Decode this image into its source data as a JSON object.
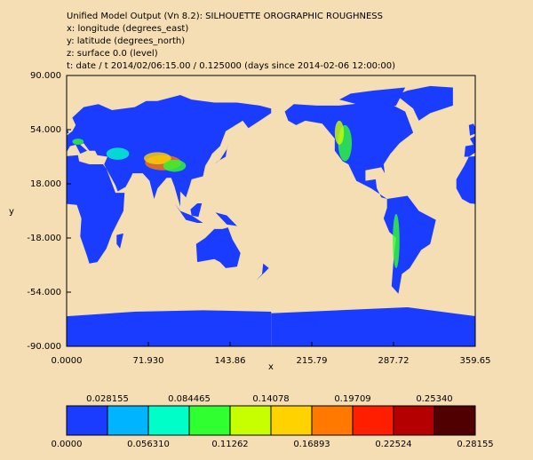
{
  "chart_data": {
    "type": "map",
    "title_lines": [
      "Unified Model Output (Vn 8.2): SILHOUETTE OROGRAPHIC ROUGHNESS",
      "x: longitude  (degrees_east)",
      "y: latitude  (degrees_north)",
      "z: surface 0.0 (level)",
      "t: date / t 2014/02/06:15.00 / 0.125000 (days since 2014-02-06 12:00:00)"
    ],
    "x_label": "x",
    "y_label": "y",
    "xlim": [
      0,
      359.65
    ],
    "xticks": [
      {
        "value": 0,
        "label": "0.0000"
      },
      {
        "value": 71.93,
        "label": "71.930"
      },
      143.86,
      215.79,
      287.72,
      359.65
    ],
    "ylim": [
      -90,
      90
    ],
    "yticks": [
      {
        "value": 90,
        "label": "90.000"
      },
      {
        "value": 54,
        "label": "54.000"
      },
      {
        "value": 18,
        "label": "18.000"
      },
      {
        "value": -18,
        "label": "-18.000"
      },
      {
        "value": -54,
        "label": "-54.000"
      },
      {
        "value": -90,
        "label": "-90.000"
      }
    ],
    "colorbar": {
      "levels": [
        {
          "value": 0,
          "label": "0.0000"
        },
        0.028155,
        {
          "value": 0.05631,
          "label": "0.056310"
        },
        0.084465,
        0.11262,
        0.14078,
        0.16893,
        0.19709,
        0.22524,
        {
          "value": 0.2534,
          "label": "0.25340"
        },
        0.28155
      ],
      "colors": [
        "#1a3cff",
        "#00b4ff",
        "#00ffc8",
        "#30ff30",
        "#c8ff00",
        "#ffd200",
        "#ff7800",
        "#ff1e00",
        "#b40000",
        "#500000"
      ]
    },
    "background": "#f5deb3"
  }
}
